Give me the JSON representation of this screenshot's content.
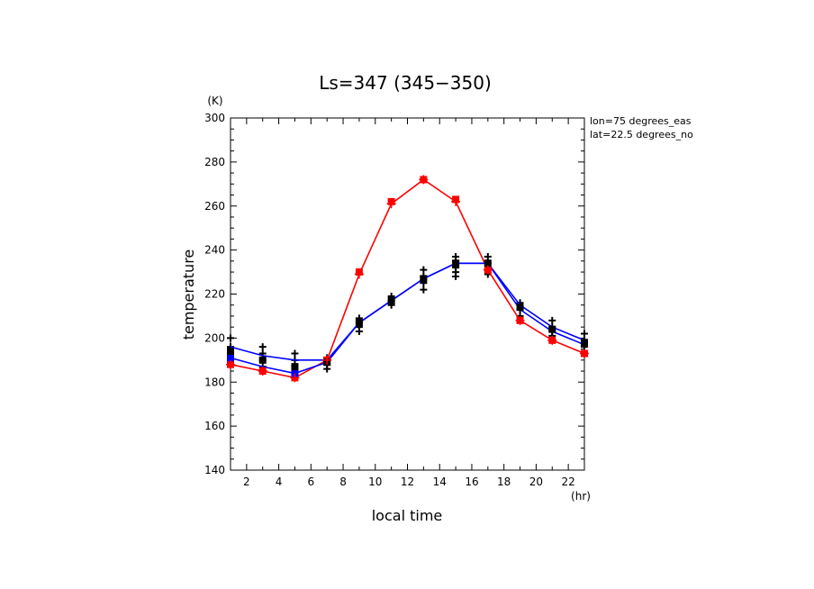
{
  "chart_data": {
    "type": "line",
    "title": "Ls=347 (345−350)",
    "xlabel": "local time",
    "ylabel": "temperature",
    "x_unit": "(hr)",
    "y_unit": "(K)",
    "xlim": [
      1,
      23
    ],
    "ylim": [
      140,
      300
    ],
    "xticks": [
      2,
      4,
      6,
      8,
      10,
      12,
      14,
      16,
      18,
      20,
      22
    ],
    "yticks": [
      140,
      160,
      180,
      200,
      220,
      240,
      260,
      280,
      300
    ],
    "annotations": [
      "lon=75 degrees_eas",
      "lat=22.5 degrees_no"
    ],
    "grid": false,
    "series": [
      {
        "color": "#ff0000",
        "x": [
          1,
          3,
          5,
          7,
          9,
          11,
          13,
          15,
          17,
          19,
          21,
          23
        ],
        "y": [
          188,
          185,
          182,
          190,
          229,
          261,
          272,
          262,
          231,
          208,
          199,
          193
        ]
      },
      {
        "color": "#0000ff",
        "x": [
          1,
          3,
          5,
          7,
          9,
          11,
          13,
          15,
          17,
          19,
          21,
          23
        ],
        "y": [
          191,
          187,
          184,
          189,
          207,
          217,
          227,
          234,
          234,
          213,
          203,
          197
        ]
      },
      {
        "color": "#0000ff",
        "x": [
          1,
          3,
          5,
          7,
          9,
          11,
          13,
          15,
          17,
          19,
          21,
          23
        ],
        "y": [
          196,
          192,
          190,
          190,
          207,
          217,
          227,
          234,
          234,
          215,
          205,
          199
        ]
      }
    ],
    "observations": {
      "color": "#000000",
      "x": [
        1,
        1,
        1,
        1,
        3,
        3,
        3,
        3,
        3,
        5,
        5,
        5,
        5,
        7,
        7,
        7,
        9,
        9,
        9,
        9,
        11,
        11,
        11,
        13,
        13,
        13,
        13,
        15,
        15,
        15,
        15,
        15,
        17,
        17,
        17,
        17,
        19,
        19,
        19,
        21,
        21,
        21,
        21,
        23,
        23,
        23,
        23
      ],
      "y": [
        200,
        196,
        193,
        190,
        196,
        193,
        190,
        187,
        185,
        193,
        190,
        187,
        184,
        191,
        188,
        186,
        209,
        207,
        205,
        203,
        219,
        217,
        215,
        231,
        228,
        225,
        222,
        237,
        235,
        232,
        230,
        228,
        237,
        234,
        231,
        229,
        216,
        213,
        210,
        208,
        205,
        203,
        201,
        202,
        199,
        196,
        194
      ]
    },
    "markers": [
      {
        "series": 0,
        "color": "#ff0000",
        "x": [
          1,
          3,
          5,
          7,
          9,
          11,
          13,
          15,
          17,
          19,
          21,
          23
        ],
        "y": [
          188,
          185,
          182,
          190,
          230,
          262,
          272,
          263,
          231,
          208,
          199,
          193
        ]
      },
      {
        "series": 1,
        "color": "#0000ff",
        "x": [
          1,
          5
        ],
        "y": [
          191,
          184
        ]
      },
      {
        "series": 2,
        "color": "#000000",
        "x": [
          1,
          3,
          5,
          7,
          9,
          11,
          13,
          15,
          17,
          19,
          21,
          23
        ],
        "y": [
          194,
          190,
          187,
          189,
          207,
          217,
          227,
          234,
          234,
          214,
          204,
          198
        ]
      }
    ]
  }
}
